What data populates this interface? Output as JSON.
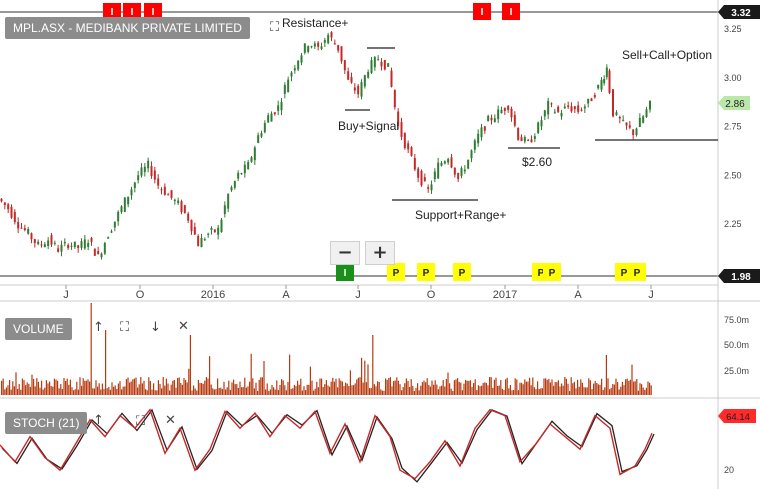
{
  "title": "MPL.ASX - MEDIBANK PRIVATE LIMITED",
  "price_top_marker": "3.32",
  "price_bottom_marker": "1.98",
  "current_price": "2.86",
  "volume_label": "VOLUME",
  "stoch_label": "STOCH (21)",
  "stoch_value": "64.14",
  "zoom_out": "−",
  "zoom_in": "+",
  "colors": {
    "up": "#2e7d32",
    "down": "#c62828",
    "volume": "#b83a10",
    "stoch": "#c62828",
    "stoch_sig": "#222222",
    "marker_red": "#ff0000",
    "marker_green": "#1a8f1a",
    "marker_yellow": "#ffff00",
    "current_price_bg": "#b9e8a8"
  },
  "chart_data": {
    "type": "candlestick",
    "x_ticks": [
      "J",
      "O",
      "2016",
      "A",
      "J",
      "O",
      "2017",
      "A",
      "J"
    ],
    "price_ticks": [
      "3.25",
      "3.00",
      "2.75",
      "2.50",
      "2.25"
    ],
    "volume_ticks": [
      "75.0m",
      "50.0m",
      "25.0m"
    ],
    "stoch_ticks": [
      "20"
    ],
    "annotations": [
      "Resistance+",
      "Buy+Signal",
      "Support+Range+",
      "$2.60",
      "Sell+Call+Option"
    ],
    "top_markers": [
      "I",
      "I",
      "I",
      "I",
      "I"
    ],
    "bottom_markers": [
      "I",
      "P",
      "P",
      "P",
      "P",
      "P",
      "P",
      "P"
    ],
    "price_series": [
      {
        "x": 0,
        "y": 2.38
      },
      {
        "x": 10,
        "y": 2.33
      },
      {
        "x": 20,
        "y": 2.25
      },
      {
        "x": 30,
        "y": 2.2
      },
      {
        "x": 40,
        "y": 2.14
      },
      {
        "x": 50,
        "y": 2.17
      },
      {
        "x": 60,
        "y": 2.12
      },
      {
        "x": 70,
        "y": 2.15
      },
      {
        "x": 80,
        "y": 2.13
      },
      {
        "x": 90,
        "y": 2.17
      },
      {
        "x": 100,
        "y": 2.08
      },
      {
        "x": 110,
        "y": 2.2
      },
      {
        "x": 120,
        "y": 2.3
      },
      {
        "x": 130,
        "y": 2.4
      },
      {
        "x": 140,
        "y": 2.5
      },
      {
        "x": 150,
        "y": 2.55
      },
      {
        "x": 160,
        "y": 2.45
      },
      {
        "x": 170,
        "y": 2.4
      },
      {
        "x": 180,
        "y": 2.35
      },
      {
        "x": 190,
        "y": 2.28
      },
      {
        "x": 200,
        "y": 2.15
      },
      {
        "x": 210,
        "y": 2.2
      },
      {
        "x": 220,
        "y": 2.22
      },
      {
        "x": 230,
        "y": 2.4
      },
      {
        "x": 240,
        "y": 2.5
      },
      {
        "x": 250,
        "y": 2.55
      },
      {
        "x": 260,
        "y": 2.7
      },
      {
        "x": 270,
        "y": 2.8
      },
      {
        "x": 280,
        "y": 2.85
      },
      {
        "x": 290,
        "y": 3.0
      },
      {
        "x": 300,
        "y": 3.1
      },
      {
        "x": 310,
        "y": 3.18
      },
      {
        "x": 320,
        "y": 3.15
      },
      {
        "x": 330,
        "y": 3.22
      },
      {
        "x": 340,
        "y": 3.15
      },
      {
        "x": 350,
        "y": 2.98
      },
      {
        "x": 360,
        "y": 2.92
      },
      {
        "x": 370,
        "y": 3.05
      },
      {
        "x": 380,
        "y": 3.1
      },
      {
        "x": 390,
        "y": 3.05
      },
      {
        "x": 400,
        "y": 2.75
      },
      {
        "x": 410,
        "y": 2.62
      },
      {
        "x": 420,
        "y": 2.5
      },
      {
        "x": 430,
        "y": 2.42
      },
      {
        "x": 440,
        "y": 2.55
      },
      {
        "x": 450,
        "y": 2.6
      },
      {
        "x": 460,
        "y": 2.48
      },
      {
        "x": 470,
        "y": 2.58
      },
      {
        "x": 480,
        "y": 2.7
      },
      {
        "x": 490,
        "y": 2.78
      },
      {
        "x": 500,
        "y": 2.82
      },
      {
        "x": 510,
        "y": 2.86
      },
      {
        "x": 520,
        "y": 2.7
      },
      {
        "x": 530,
        "y": 2.66
      },
      {
        "x": 540,
        "y": 2.75
      },
      {
        "x": 550,
        "y": 2.86
      },
      {
        "x": 560,
        "y": 2.82
      },
      {
        "x": 570,
        "y": 2.85
      },
      {
        "x": 580,
        "y": 2.83
      },
      {
        "x": 590,
        "y": 2.87
      },
      {
        "x": 600,
        "y": 2.95
      },
      {
        "x": 608,
        "y": 3.05
      },
      {
        "x": 615,
        "y": 2.82
      },
      {
        "x": 625,
        "y": 2.76
      },
      {
        "x": 635,
        "y": 2.72
      },
      {
        "x": 645,
        "y": 2.8
      },
      {
        "x": 652,
        "y": 2.86
      }
    ],
    "stoch_series": [
      {
        "x": 0,
        "y": 50
      },
      {
        "x": 15,
        "y": 30
      },
      {
        "x": 30,
        "y": 60
      },
      {
        "x": 45,
        "y": 35
      },
      {
        "x": 60,
        "y": 20
      },
      {
        "x": 75,
        "y": 50
      },
      {
        "x": 90,
        "y": 80
      },
      {
        "x": 105,
        "y": 60
      },
      {
        "x": 120,
        "y": 85
      },
      {
        "x": 135,
        "y": 70
      },
      {
        "x": 150,
        "y": 92
      },
      {
        "x": 165,
        "y": 40
      },
      {
        "x": 180,
        "y": 70
      },
      {
        "x": 195,
        "y": 20
      },
      {
        "x": 210,
        "y": 45
      },
      {
        "x": 225,
        "y": 90
      },
      {
        "x": 240,
        "y": 70
      },
      {
        "x": 255,
        "y": 88
      },
      {
        "x": 270,
        "y": 60
      },
      {
        "x": 285,
        "y": 85
      },
      {
        "x": 300,
        "y": 70
      },
      {
        "x": 315,
        "y": 90
      },
      {
        "x": 330,
        "y": 40
      },
      {
        "x": 345,
        "y": 75
      },
      {
        "x": 360,
        "y": 30
      },
      {
        "x": 375,
        "y": 85
      },
      {
        "x": 390,
        "y": 60
      },
      {
        "x": 400,
        "y": 20
      },
      {
        "x": 415,
        "y": 10
      },
      {
        "x": 430,
        "y": 30
      },
      {
        "x": 445,
        "y": 55
      },
      {
        "x": 460,
        "y": 25
      },
      {
        "x": 475,
        "y": 70
      },
      {
        "x": 490,
        "y": 92
      },
      {
        "x": 505,
        "y": 85
      },
      {
        "x": 520,
        "y": 30
      },
      {
        "x": 535,
        "y": 50
      },
      {
        "x": 550,
        "y": 75
      },
      {
        "x": 565,
        "y": 60
      },
      {
        "x": 580,
        "y": 45
      },
      {
        "x": 595,
        "y": 85
      },
      {
        "x": 610,
        "y": 70
      },
      {
        "x": 620,
        "y": 15
      },
      {
        "x": 635,
        "y": 25
      },
      {
        "x": 645,
        "y": 45
      },
      {
        "x": 652,
        "y": 64
      }
    ]
  }
}
